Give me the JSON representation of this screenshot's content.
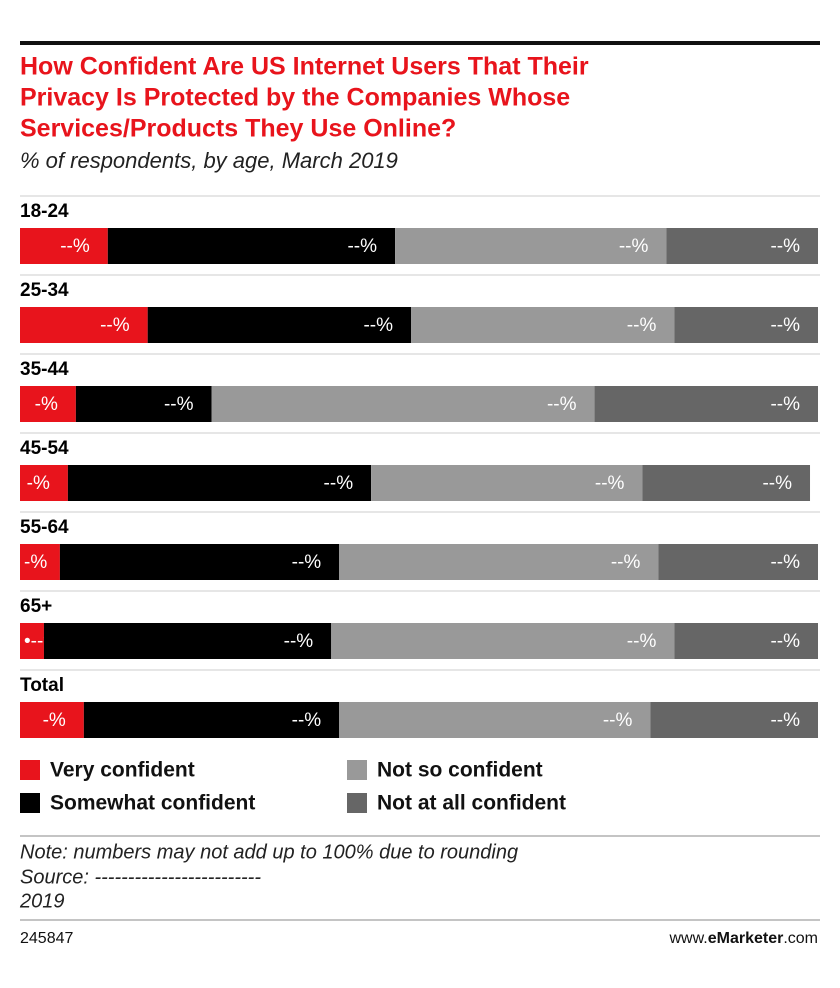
{
  "chart_data": {
    "type": "stacked-bar-horizontal",
    "title": [
      "How Confident Are US Internet Users That Their",
      "Privacy Is Protected by the Companies Whose",
      "Services/Products They Use Online?"
    ],
    "subtitle": "% of respondents, by age, March 2019",
    "categories": [
      "18-24",
      "25-34",
      "35-44",
      "45-54",
      "55-64",
      "65+",
      "Total"
    ],
    "highlight_category_color": "#e8141c",
    "xlim": [
      0,
      100
    ],
    "series": [
      {
        "name": "Very confident",
        "color": "#e8141c",
        "values": [
          11,
          16,
          7,
          6,
          5,
          3,
          8
        ],
        "value_labels": [
          "--%",
          "--%",
          "-%",
          "-%",
          "-%",
          "•--%",
          "-%"
        ]
      },
      {
        "name": "Somewhat confident",
        "color": "#000000",
        "values": [
          36,
          33,
          17,
          38,
          35,
          36,
          32
        ],
        "value_labels": [
          "--%",
          "--%",
          "--%",
          "--%",
          "--%",
          "--%",
          "--%"
        ]
      },
      {
        "name": "Not so confident",
        "color": "#999999",
        "values": [
          34,
          33,
          48,
          34,
          40,
          43,
          39
        ],
        "value_labels": [
          "--%",
          "--%",
          "--%",
          "--%",
          "--%",
          "--%",
          "--%"
        ]
      },
      {
        "name": "Not at all confident",
        "color": "#666666",
        "values": [
          19,
          18,
          28,
          21,
          20,
          18,
          21
        ],
        "value_labels": [
          "--%",
          "--%",
          "--%",
          "--%",
          "--%",
          "--%",
          "--%"
        ]
      }
    ],
    "note": "Note: numbers may not add up to 100% due to rounding",
    "source": "Source: -------------------------",
    "source_year": "2019",
    "chart_id": "245847",
    "brand": [
      "www.",
      "eMarketer",
      ".com"
    ]
  }
}
